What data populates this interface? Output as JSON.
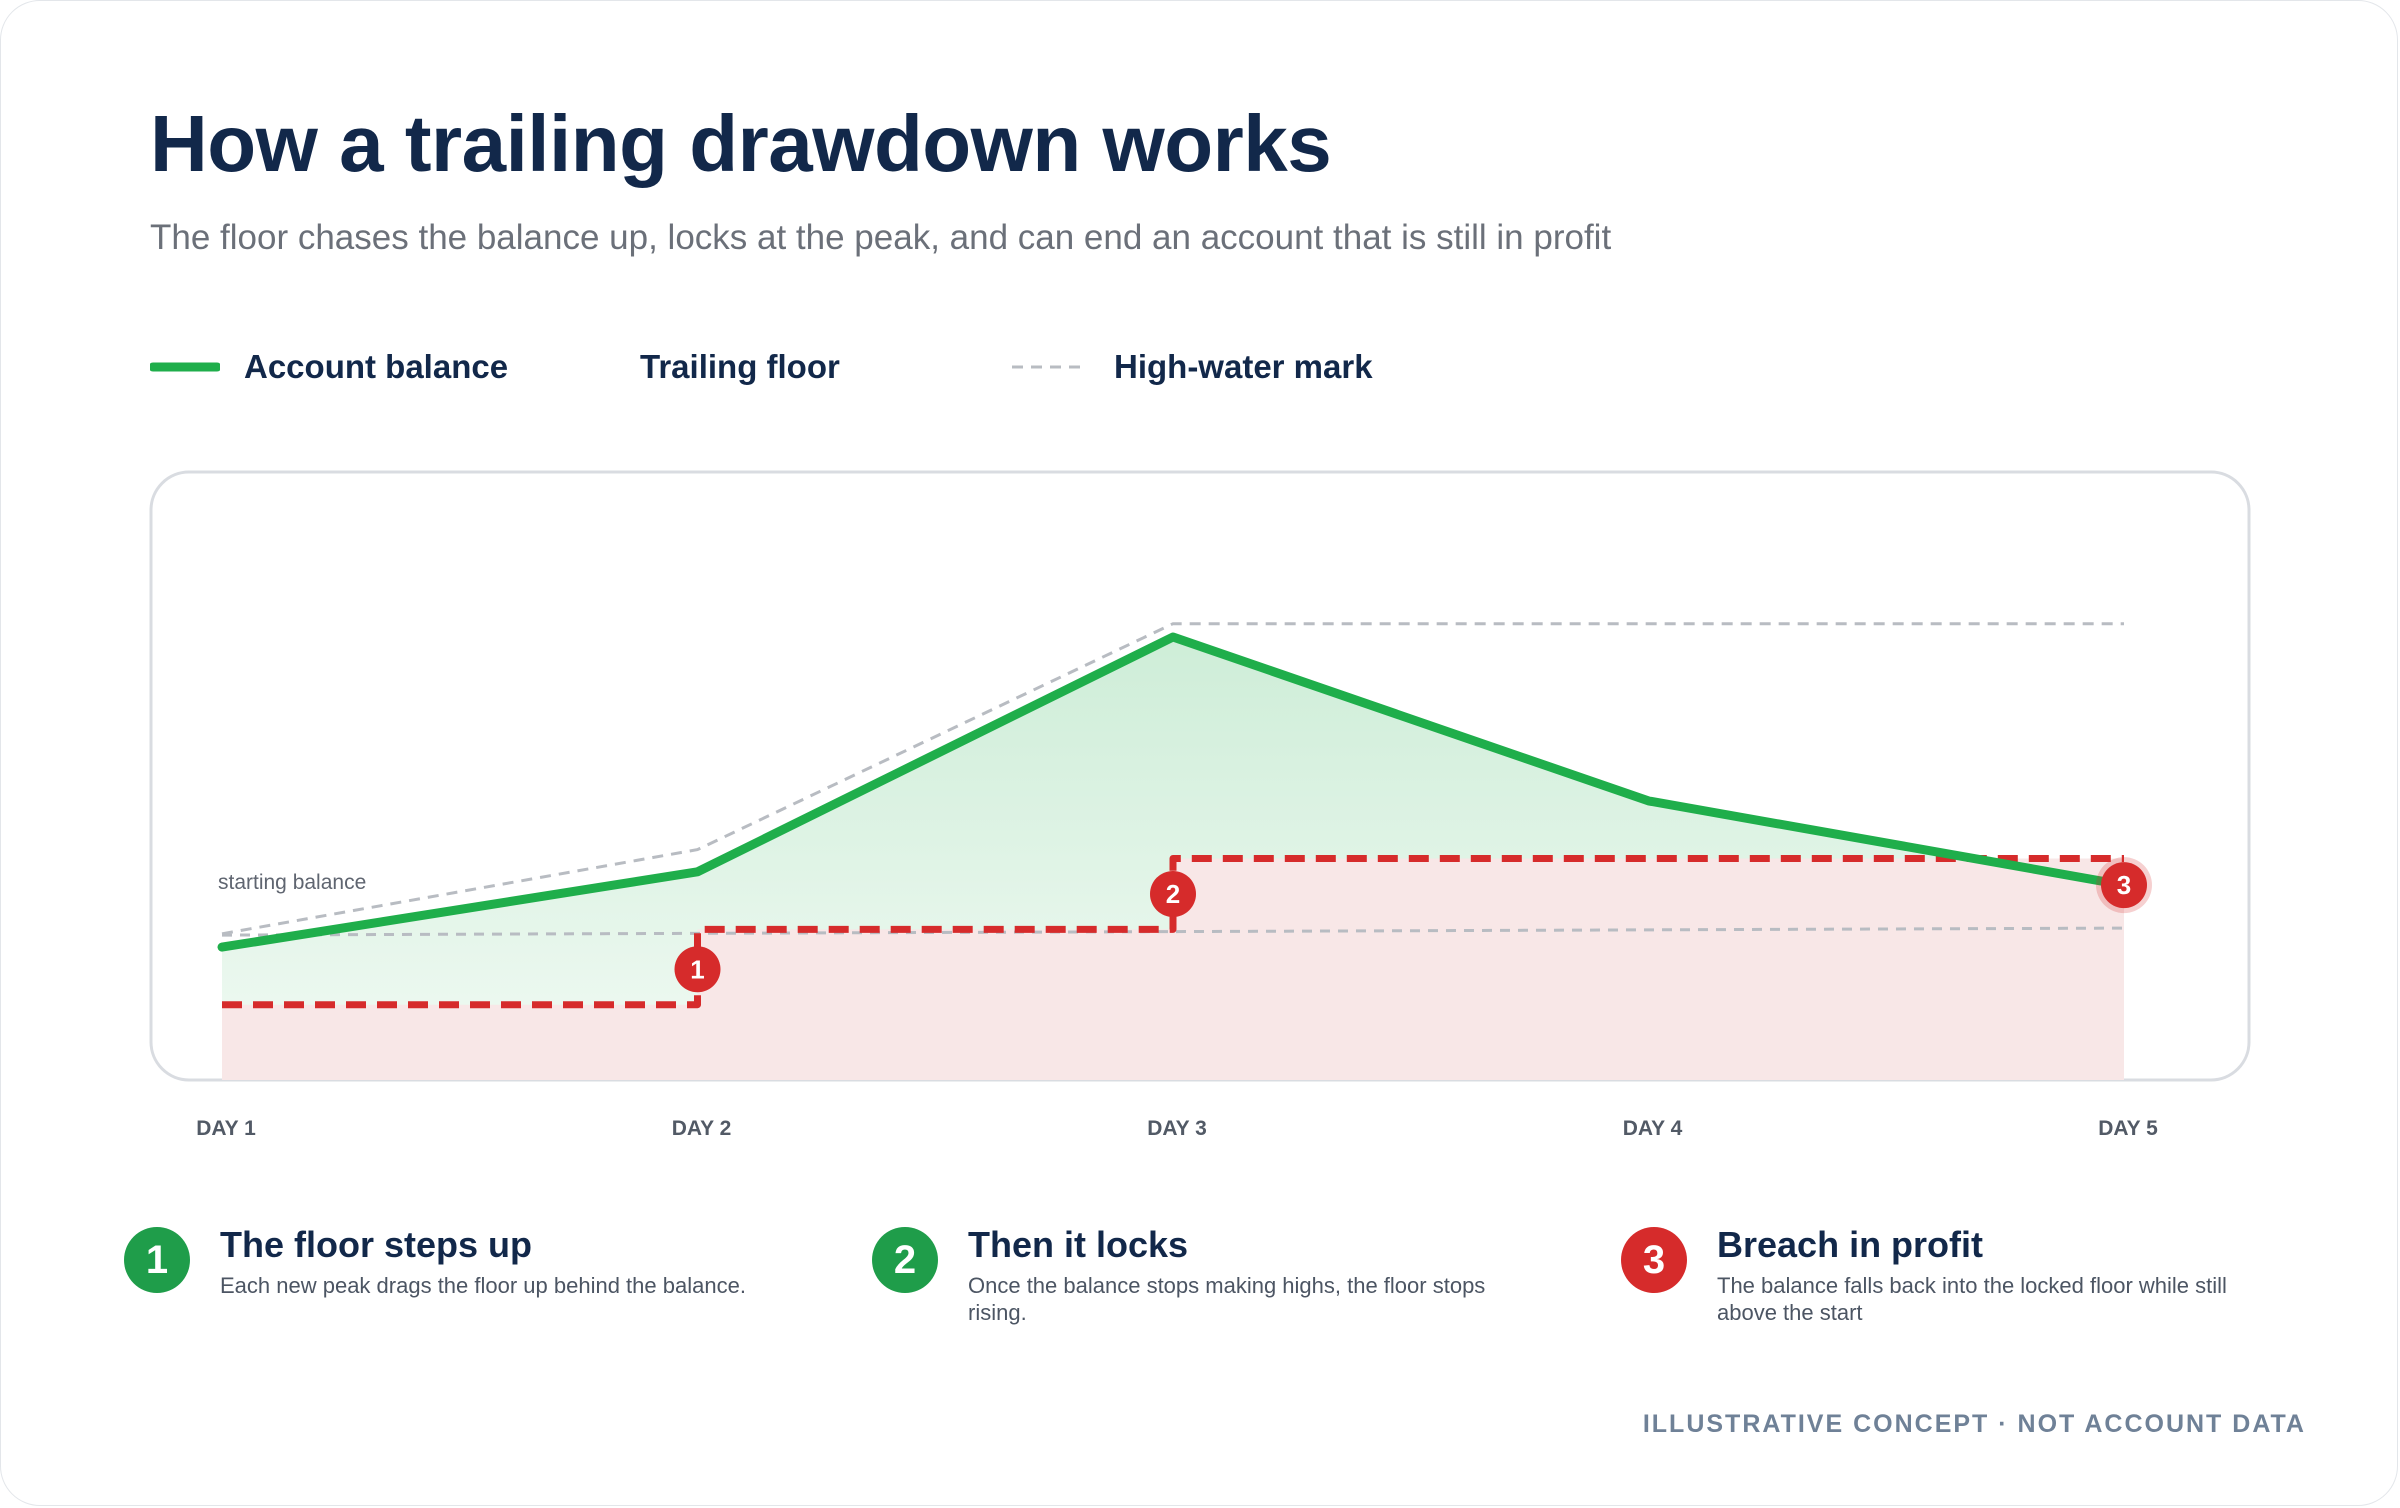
{
  "title": "How a trailing drawdown works",
  "subtitle": "The floor chases the balance up, locks at the peak, and can end an account that is still in profit",
  "legend": [
    {
      "label": "Account balance",
      "color": "#1fae4b",
      "style": "solid"
    },
    {
      "label": "Trailing floor",
      "color": "#d62b2b",
      "style": "dashed"
    },
    {
      "label": "High-water mark",
      "color": "#b8bcc2",
      "style": "dashed-thin"
    }
  ],
  "chart_data": {
    "type": "line",
    "categories": [
      "DAY 1",
      "DAY 2",
      "DAY 3",
      "DAY 4",
      "DAY 5"
    ],
    "ylim": [
      0,
      100
    ],
    "grid": false,
    "annotation": "starting balance",
    "series": [
      {
        "name": "Account balance",
        "color": "#1fae4b",
        "x": [
          1,
          2,
          3,
          4,
          5
        ],
        "values": [
          30,
          47,
          100,
          63,
          44
        ]
      },
      {
        "name": "Trailing floor",
        "color": "#d62b2b",
        "shape": "step",
        "x": [
          1,
          2,
          2,
          3,
          3,
          5
        ],
        "values": [
          17,
          17,
          34,
          34,
          50,
          50
        ]
      },
      {
        "name": "High-water mark",
        "color": "#b8bcc2",
        "x": [
          1,
          2,
          3,
          5
        ],
        "values": [
          33,
          52,
          103,
          103
        ]
      }
    ],
    "markers": [
      {
        "label": "1",
        "x": 2,
        "y": 25
      },
      {
        "label": "2",
        "x": 3,
        "y": 42
      },
      {
        "label": "3",
        "x": 5,
        "y": 44
      }
    ]
  },
  "callouts": [
    {
      "number": "1",
      "title": "The floor steps up",
      "text": "Each new peak drags the floor up behind the balance.",
      "color": "#1f9d4a"
    },
    {
      "number": "2",
      "title": "Then it locks",
      "text": "Once the balance stops making highs, the floor stops rising.",
      "color": "#1f9d4a"
    },
    {
      "number": "3",
      "title": "Breach in profit",
      "text": "The balance falls back into the locked floor while still above the start",
      "color": "#d62b2b"
    }
  ],
  "footer": "ILLUSTRATIVE CONCEPT · NOT ACCOUNT DATA"
}
